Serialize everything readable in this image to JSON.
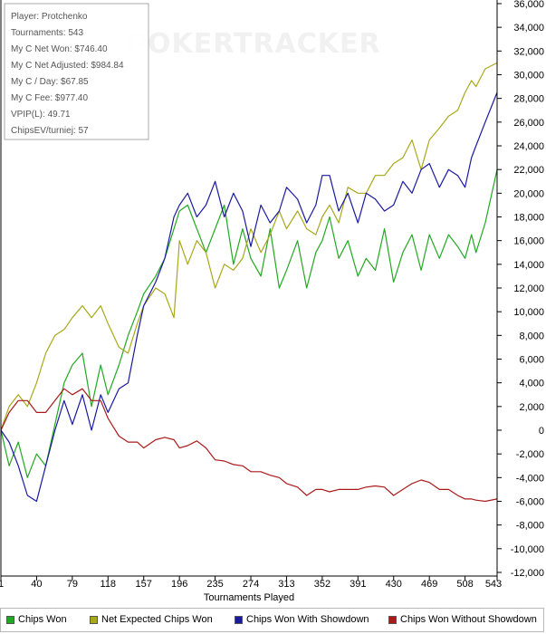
{
  "chart_data": {
    "type": "line",
    "xlabel": "Tournaments Played",
    "ylabel": "",
    "xlim": [
      1,
      543
    ],
    "ylim": [
      -12000,
      36000
    ],
    "x_ticks": [
      1,
      40,
      79,
      118,
      157,
      196,
      235,
      274,
      313,
      352,
      391,
      430,
      469,
      508,
      543
    ],
    "y_ticks": [
      36000,
      34000,
      32000,
      30000,
      28000,
      26000,
      24000,
      22000,
      20000,
      18000,
      16000,
      14000,
      12000,
      10000,
      8000,
      6000,
      4000,
      2000,
      0,
      -2000,
      -4000,
      -6000,
      -8000,
      -10000,
      -12000
    ],
    "y_tick_labels": [
      "36,000",
      "34,000",
      "32,000",
      "30,000",
      "28,000",
      "26,000",
      "24,000",
      "22,000",
      "20,000",
      "18,000",
      "16,000",
      "14,000",
      "12,000",
      "10,000",
      "8,000",
      "6,000",
      "4,000",
      "2,000",
      "0",
      "-2,000",
      "-4,000",
      "-6,000",
      "-8,000",
      "-10,000",
      "-12,000"
    ],
    "x_tick_labels": [
      "1",
      "40",
      "79",
      "118",
      "157",
      "196",
      "235",
      "274",
      "313",
      "352",
      "391",
      "430",
      "469",
      "508",
      "543"
    ],
    "grid": false,
    "legend_position": "bottom",
    "series": [
      {
        "name": "Chips Won",
        "color": "#22a822",
        "x": [
          1,
          10,
          20,
          30,
          40,
          50,
          60,
          70,
          79,
          90,
          100,
          110,
          118,
          130,
          140,
          150,
          157,
          170,
          180,
          190,
          196,
          205,
          215,
          225,
          235,
          245,
          255,
          265,
          274,
          285,
          295,
          305,
          313,
          325,
          335,
          345,
          352,
          360,
          370,
          380,
          391,
          400,
          410,
          420,
          430,
          440,
          450,
          460,
          469,
          480,
          490,
          500,
          508,
          515,
          520,
          530,
          543
        ],
        "y": [
          0,
          -3000,
          -1000,
          -4000,
          -2000,
          -3000,
          500,
          4000,
          5500,
          6500,
          2000,
          5500,
          3000,
          5500,
          8000,
          10000,
          11500,
          13000,
          14500,
          17000,
          18500,
          19000,
          17000,
          15000,
          17000,
          19000,
          14000,
          17000,
          14500,
          13000,
          17000,
          12000,
          13500,
          16000,
          12000,
          15000,
          16000,
          18000,
          14500,
          16000,
          13000,
          14500,
          13500,
          17000,
          12500,
          15000,
          16500,
          13500,
          16500,
          14500,
          16500,
          15500,
          14500,
          16500,
          15000,
          17500,
          22000
        ]
      },
      {
        "name": "Net Expected Chips Won",
        "color": "#a8a81a",
        "x": [
          1,
          10,
          20,
          30,
          40,
          50,
          60,
          70,
          79,
          90,
          100,
          110,
          118,
          130,
          140,
          150,
          157,
          170,
          180,
          190,
          196,
          205,
          215,
          225,
          235,
          245,
          255,
          265,
          274,
          285,
          295,
          305,
          313,
          325,
          335,
          345,
          352,
          360,
          370,
          380,
          391,
          400,
          410,
          420,
          430,
          440,
          450,
          460,
          469,
          480,
          490,
          500,
          508,
          515,
          520,
          530,
          543
        ],
        "y": [
          0,
          2000,
          3000,
          2000,
          4000,
          6500,
          8000,
          8500,
          9500,
          10500,
          9500,
          10500,
          9000,
          7000,
          6500,
          9000,
          10500,
          12000,
          11500,
          9500,
          16000,
          14000,
          16000,
          15000,
          12000,
          14000,
          13500,
          14500,
          17000,
          15000,
          16500,
          18500,
          17000,
          18500,
          17000,
          16500,
          18000,
          19000,
          17500,
          20500,
          20000,
          20000,
          21500,
          21500,
          22500,
          23000,
          24500,
          22000,
          24500,
          25500,
          26500,
          27000,
          28500,
          29500,
          29000,
          30500,
          31000
        ]
      },
      {
        "name": "Chips Won With Showdown",
        "color": "#1a1aa0",
        "x": [
          1,
          10,
          20,
          30,
          40,
          50,
          60,
          70,
          79,
          90,
          100,
          110,
          118,
          130,
          140,
          150,
          157,
          170,
          180,
          190,
          196,
          205,
          215,
          225,
          235,
          245,
          255,
          265,
          274,
          285,
          295,
          305,
          313,
          325,
          335,
          345,
          352,
          360,
          370,
          380,
          391,
          400,
          410,
          420,
          430,
          440,
          450,
          460,
          469,
          480,
          490,
          500,
          508,
          515,
          520,
          530,
          543
        ],
        "y": [
          0,
          -1000,
          -3000,
          -5500,
          -6000,
          -3000,
          0,
          2500,
          500,
          3000,
          0,
          3000,
          1500,
          3500,
          4000,
          8000,
          10500,
          12500,
          14500,
          18000,
          19000,
          20000,
          18000,
          19000,
          21000,
          18000,
          20000,
          18500,
          15500,
          19000,
          17500,
          18500,
          20500,
          19500,
          17500,
          19000,
          21500,
          21500,
          18500,
          20000,
          17500,
          20000,
          19500,
          18500,
          19000,
          21000,
          20000,
          22000,
          22500,
          20500,
          22000,
          21500,
          20500,
          23000,
          24000,
          26000,
          28500
        ]
      },
      {
        "name": "Chips Won Without Showdown",
        "color": "#aa1a1a",
        "x": [
          1,
          10,
          20,
          30,
          40,
          50,
          60,
          70,
          79,
          90,
          100,
          110,
          118,
          130,
          140,
          150,
          157,
          170,
          180,
          190,
          196,
          205,
          215,
          225,
          235,
          245,
          255,
          265,
          274,
          285,
          295,
          305,
          313,
          325,
          335,
          345,
          352,
          360,
          370,
          380,
          391,
          400,
          410,
          420,
          430,
          440,
          450,
          460,
          469,
          480,
          490,
          500,
          508,
          515,
          520,
          530,
          543
        ],
        "y": [
          0,
          1500,
          2500,
          2500,
          1500,
          1500,
          2500,
          3500,
          3000,
          3500,
          2500,
          2500,
          1000,
          -500,
          -1000,
          -1000,
          -1500,
          -800,
          -600,
          -800,
          -1500,
          -1300,
          -900,
          -1500,
          -2500,
          -2600,
          -2900,
          -3000,
          -3500,
          -3500,
          -3800,
          -4000,
          -4500,
          -4800,
          -5500,
          -5000,
          -5000,
          -5200,
          -5000,
          -5000,
          -5000,
          -4800,
          -4700,
          -4800,
          -5500,
          -5000,
          -4500,
          -4200,
          -4400,
          -5000,
          -5000,
          -5500,
          -5800,
          -5800,
          -5900,
          -6000,
          -5800
        ]
      }
    ]
  },
  "stats": {
    "lines": [
      "Player: Protchenko",
      "Tournaments: 543",
      "My C Net Won: $746.40",
      "My C Net Adjusted: $984.84",
      "My C / Day: $67.85",
      "My C Fee: $977.40",
      "VPIP(L): 49.71",
      "ChipsEV/turniej: 57"
    ]
  },
  "watermark": {
    "text": "POKERTRACKER"
  },
  "legend": {
    "items": [
      {
        "label": "Chips Won",
        "color": "#22a822"
      },
      {
        "label": "Net Expected Chips Won",
        "color": "#a8a81a"
      },
      {
        "label": "Chips Won With Showdown",
        "color": "#1a1aa0"
      },
      {
        "label": "Chips Won Without Showdown",
        "color": "#aa1a1a"
      }
    ]
  }
}
